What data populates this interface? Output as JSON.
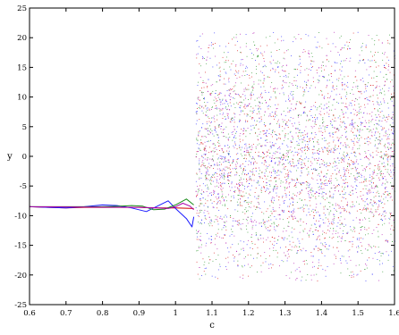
{
  "chart_data": {
    "type": "scatter",
    "title": "",
    "xlabel": "c",
    "ylabel": "y",
    "xlim": [
      0.6,
      1.6
    ],
    "ylim": [
      -25,
      25
    ],
    "xticks": [
      0.6,
      0.7,
      0.8,
      0.9,
      1.0,
      1.1,
      1.2,
      1.3,
      1.4,
      1.5,
      1.6
    ],
    "yticks": [
      -25,
      -20,
      -15,
      -10,
      -5,
      0,
      5,
      10,
      15,
      20,
      25
    ],
    "xtick_labels": [
      "0.6",
      "0.7",
      "0.8",
      "0.9",
      "1",
      "1.1",
      "1.2",
      "1.3",
      "1.4",
      "1.5",
      "1.6"
    ],
    "ytick_labels": [
      "-25",
      "-20",
      "-15",
      "-10",
      "-5",
      "0",
      "5",
      "10",
      "15",
      "20",
      "25"
    ],
    "grid": false,
    "legend": "none",
    "transition_c": 1.055,
    "series": [
      {
        "color": "#d40000",
        "x": [
          0.6,
          0.65,
          0.7,
          0.75,
          0.8,
          0.85,
          0.9,
          0.95,
          1.0,
          1.05
        ],
        "y": [
          -8.5,
          -8.6,
          -8.7,
          -8.6,
          -8.6,
          -8.6,
          -8.6,
          -8.7,
          -8.7,
          -8.8
        ]
      },
      {
        "color": "#1a1aff",
        "x": [
          0.6,
          0.7,
          0.75,
          0.8,
          0.84,
          0.88,
          0.92,
          0.95,
          0.98,
          1.0,
          1.03,
          1.045,
          1.05
        ],
        "y": [
          -8.5,
          -8.7,
          -8.5,
          -8.2,
          -8.3,
          -8.7,
          -9.3,
          -8.4,
          -7.5,
          -8.8,
          -10.5,
          -11.9,
          -10.2
        ]
      },
      {
        "color": "#1a8c1a",
        "x": [
          0.6,
          0.8,
          0.85,
          0.88,
          0.91,
          0.94,
          0.97,
          1.0,
          1.03,
          1.05
        ],
        "y": [
          -8.5,
          -8.5,
          -8.4,
          -8.3,
          -8.4,
          -9.0,
          -8.9,
          -8.2,
          -7.2,
          -8.2
        ]
      },
      {
        "color": "#aa00aa",
        "x": [
          0.6,
          0.9,
          0.95,
          0.98,
          1.0,
          1.02,
          1.04,
          1.05
        ],
        "y": [
          -8.5,
          -8.6,
          -8.7,
          -8.8,
          -8.5,
          -7.9,
          -8.4,
          -9.0
        ]
      }
    ],
    "scatter_region": {
      "x_range": [
        1.055,
        1.6
      ],
      "y_range": [
        -21,
        21
      ],
      "colors": [
        "#1a1aff",
        "#d40000",
        "#1a8c1a",
        "#aa00aa"
      ]
    }
  }
}
